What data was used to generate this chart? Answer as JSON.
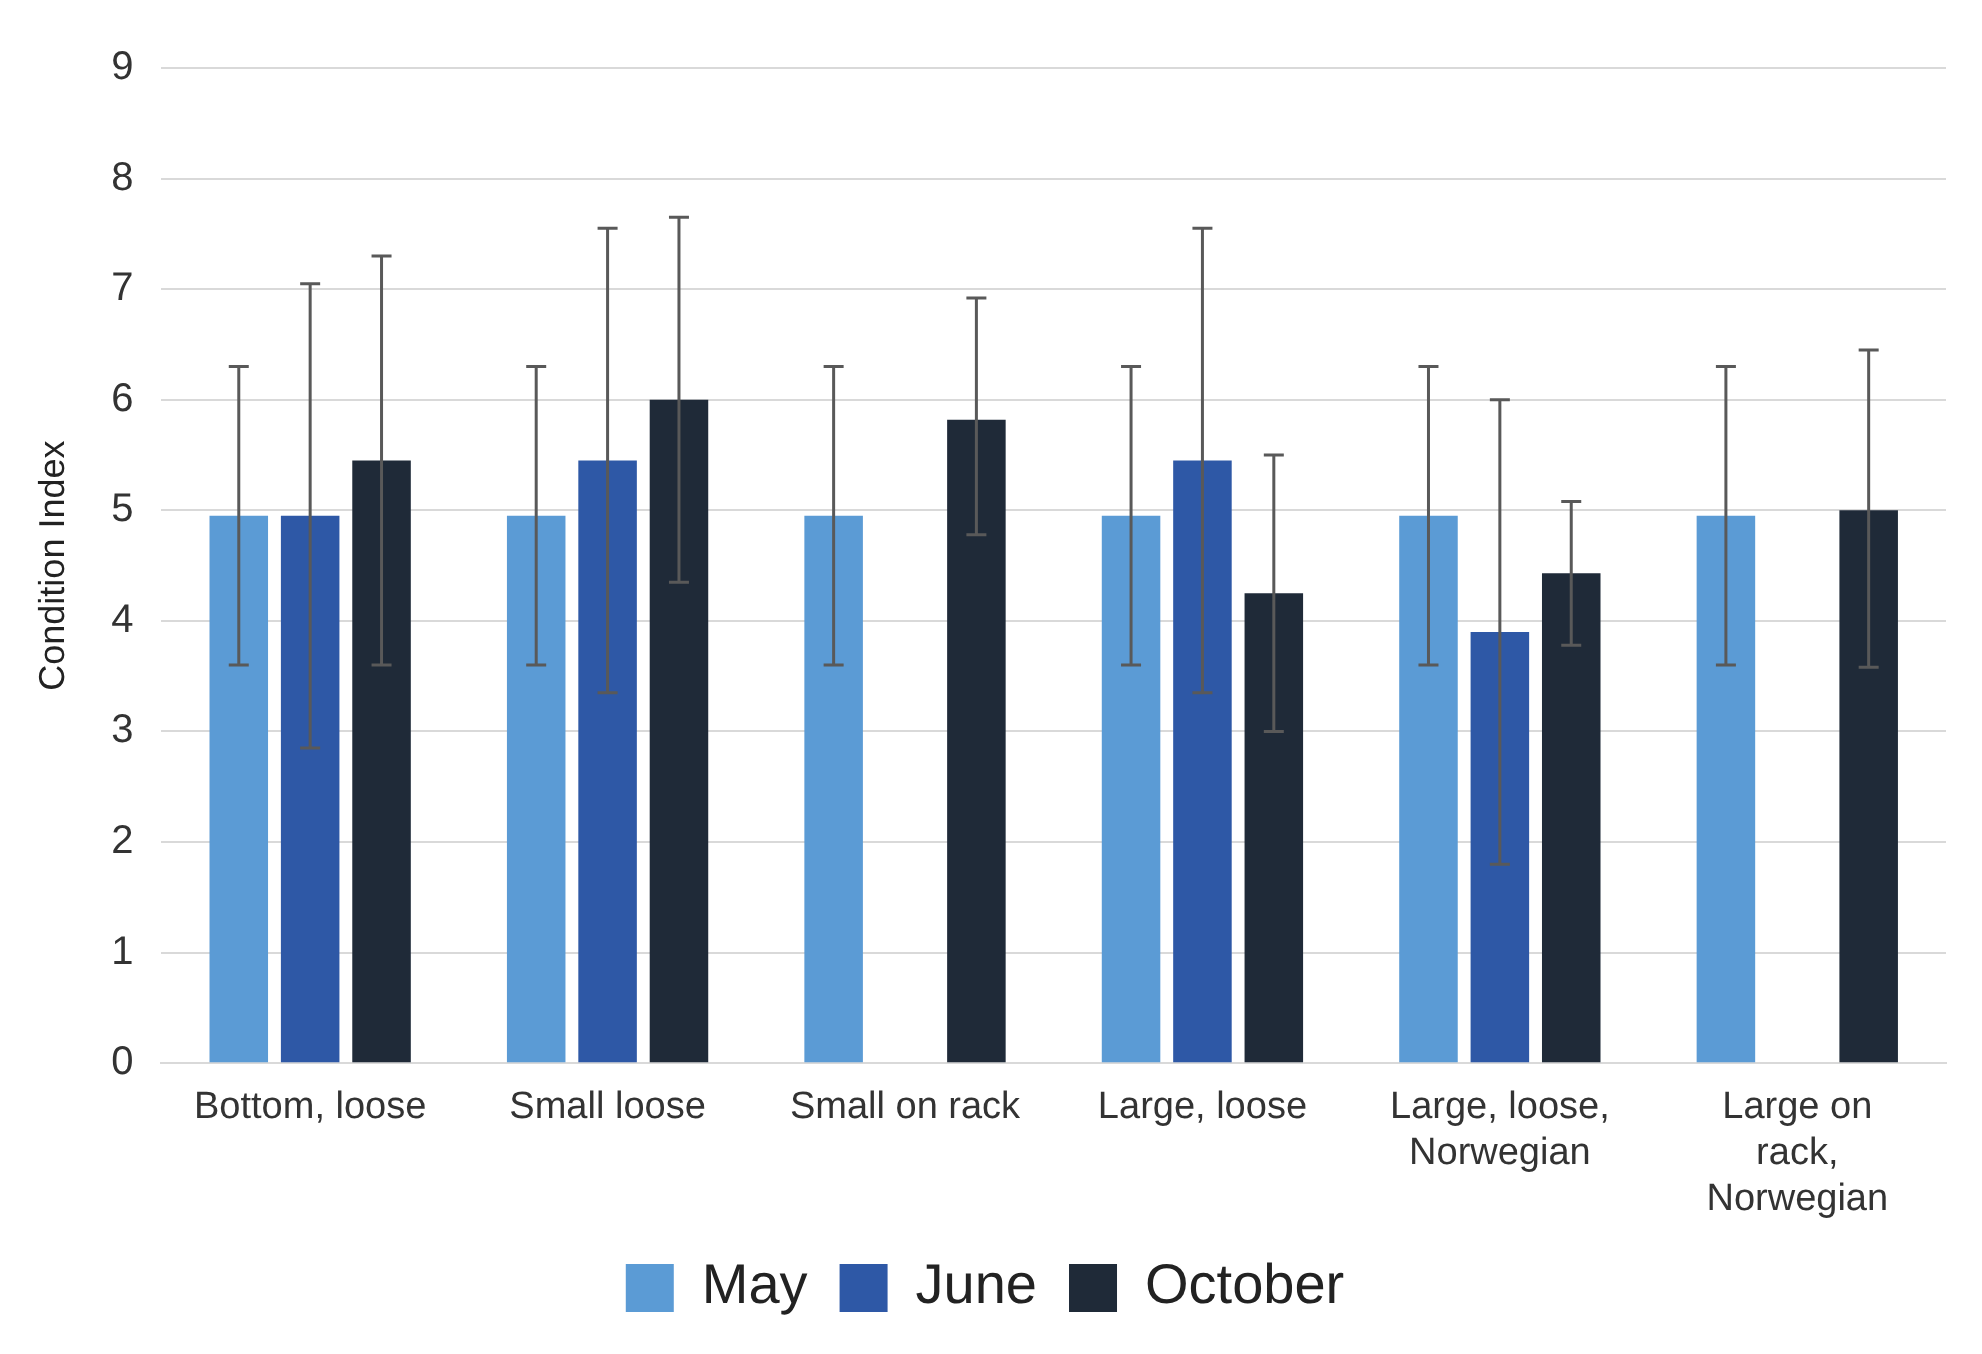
{
  "chart_data": {
    "type": "bar",
    "ylabel": "Condition Index",
    "categories": [
      "Bottom, loose",
      "Small loose",
      "Small on rack",
      "Large, loose",
      "Large, loose, Norwegian",
      "Large on rack, Norwegian"
    ],
    "series": [
      {
        "name": "May",
        "color": "#5b9bd5",
        "values": [
          4.95,
          4.95,
          4.95,
          4.95,
          4.95,
          4.95
        ],
        "errors": [
          [
            3.6,
            6.3
          ],
          [
            3.6,
            6.3
          ],
          [
            3.6,
            6.3
          ],
          [
            3.6,
            6.3
          ],
          [
            3.6,
            6.3
          ],
          [
            3.6,
            6.3
          ]
        ]
      },
      {
        "name": "June",
        "color": "#2e58a6",
        "values": [
          4.95,
          5.45,
          null,
          5.45,
          3.9,
          null
        ],
        "errors": [
          [
            2.85,
            7.05
          ],
          [
            3.35,
            7.55
          ],
          null,
          [
            3.35,
            7.55
          ],
          [
            1.8,
            6.0
          ],
          null
        ]
      },
      {
        "name": "October",
        "color": "#1f2a38",
        "values": [
          5.45,
          6.0,
          5.82,
          4.25,
          4.43,
          5.0
        ],
        "errors": [
          [
            3.6,
            7.3
          ],
          [
            4.35,
            7.65
          ],
          [
            4.78,
            6.92
          ],
          [
            3.0,
            5.5
          ],
          [
            3.78,
            5.08
          ],
          [
            3.58,
            6.45
          ]
        ]
      }
    ],
    "ylim": [
      0,
      9
    ],
    "yticks": [
      0,
      1,
      2,
      3,
      4,
      5,
      6,
      7,
      8,
      9
    ],
    "grid": "y",
    "legend": "bottom"
  }
}
